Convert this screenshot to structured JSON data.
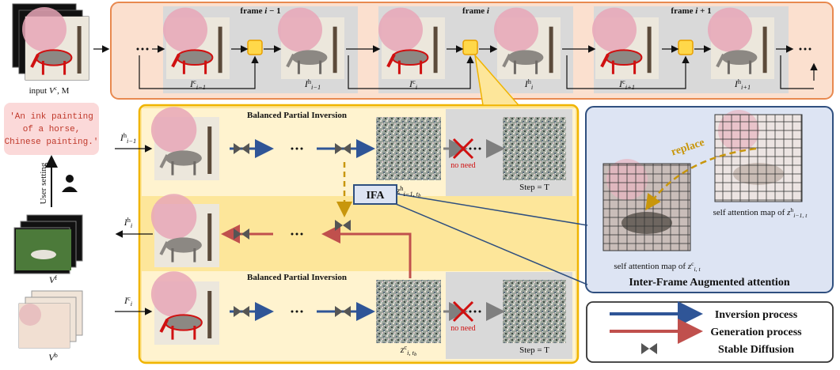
{
  "left": {
    "input_label": {
      "prefix": "input ",
      "base": "V",
      "sup": "c",
      "suffix": ", M"
    },
    "prompt": [
      "'An ink painting",
      "of a horse,",
      "Chinese painting.'"
    ],
    "user_setting": "User setting",
    "foreground": {
      "base": "V",
      "sup": "f"
    },
    "background": {
      "base": "V",
      "sup": "b"
    }
  },
  "top": {
    "frames": [
      {
        "prefix": "frame ",
        "base": "i",
        "suffix": " − 1"
      },
      {
        "prefix": "frame ",
        "base": "i"
      },
      {
        "prefix": "frame ",
        "base": "i",
        "suffix": " + 1"
      }
    ],
    "images": [
      {
        "base": "I",
        "sup": "c",
        "sub": "i−1"
      },
      {
        "base": "I",
        "sup": "h",
        "sub": "i−1"
      },
      {
        "base": "I",
        "sup": "c",
        "sub": "i"
      },
      {
        "base": "I",
        "sup": "h",
        "sub": "i"
      },
      {
        "base": "I",
        "sup": "c",
        "sub": "i+1"
      },
      {
        "base": "I",
        "sup": "h",
        "sub": "i+1"
      }
    ]
  },
  "main": {
    "bpi": [
      "Balanced Partial Inversion",
      "Balanced Partial Inversion"
    ],
    "row_labels": [
      {
        "base": "I",
        "sup": "h",
        "sub": "i−1"
      },
      {
        "base": "I",
        "sup": "h",
        "sub": "i"
      },
      {
        "base": "I",
        "sup": "c",
        "sub": "i"
      }
    ],
    "latents": [
      {
        "base": "z",
        "sup": "h",
        "sub": "i−1, t",
        "sub2": "b"
      },
      {
        "base": "z",
        "sup": "c",
        "sub": "i, t",
        "sub2": "b"
      }
    ],
    "no_need": [
      "no need",
      "no need"
    ],
    "step": [
      "Step = T",
      "Step = T"
    ],
    "ifa": "IFA"
  },
  "ifa_panel": {
    "replace": "replace",
    "map_prev": {
      "prefix": "self attention map of ",
      "base": "z",
      "sup": "h",
      "sub": "i−1, t"
    },
    "map_cur": {
      "prefix": "self attention map of ",
      "base": "z",
      "sup": "c",
      "sub": "i, t"
    },
    "title": "Inter-Frame Augmented attention"
  },
  "legend": [
    "Inversion process",
    "Generation process",
    "Stable Diffusion"
  ]
}
